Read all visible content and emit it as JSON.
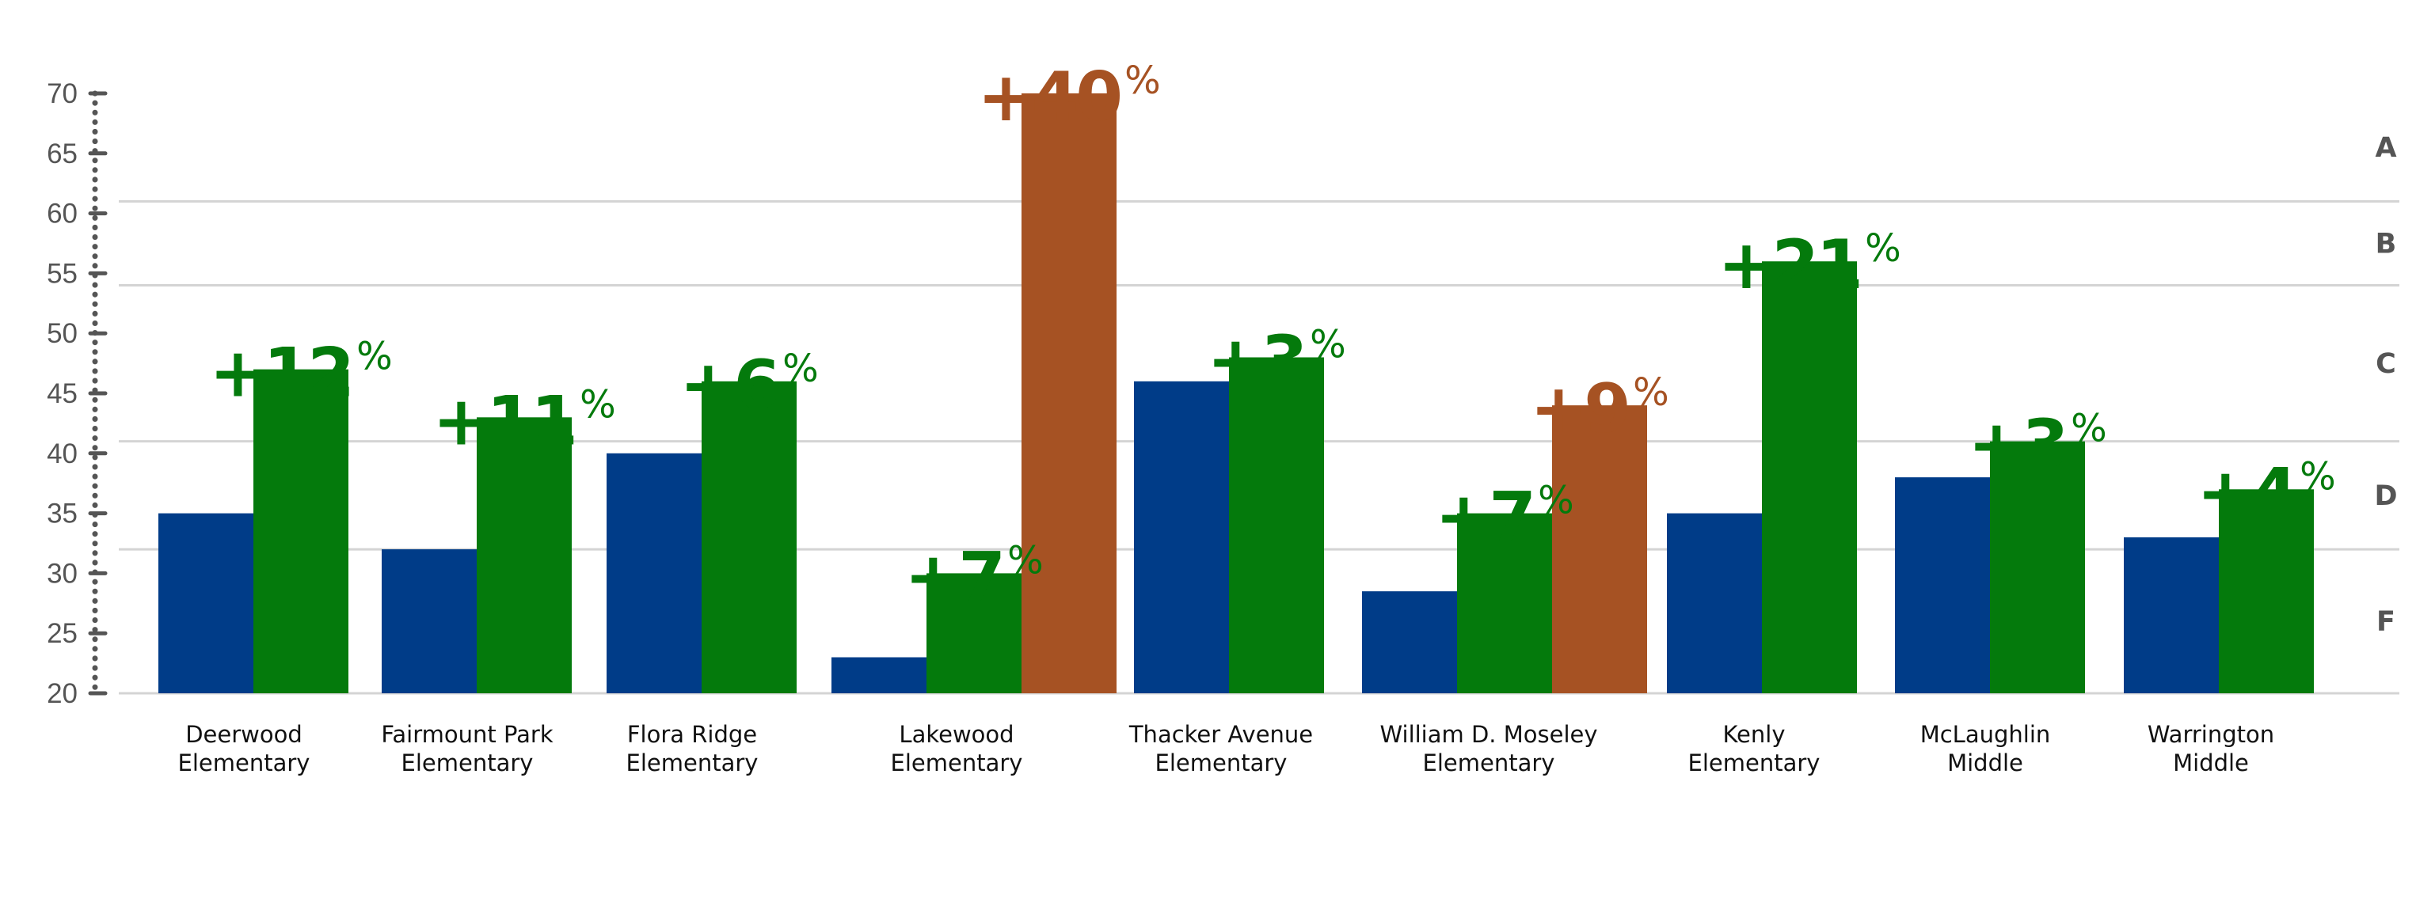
{
  "colors": {
    "baseline_bar": "#003c88",
    "improved_bar": "#047a0c",
    "highlight_bar": "#a65223",
    "grid": "#d4d4d4",
    "axis": "#555555",
    "category_text": "#111111"
  },
  "chart_data": {
    "type": "bar",
    "title": "",
    "xlabel": "",
    "ylabel": "",
    "ylim": [
      20,
      70
    ],
    "y_ticks": [
      "70",
      "65",
      "60",
      "55",
      "50",
      "45",
      "40",
      "35",
      "30",
      "25",
      "20"
    ],
    "grade_bands": [
      {
        "label": "A",
        "lower": 61,
        "upper": 70
      },
      {
        "label": "B",
        "lower": 54,
        "upper": 61
      },
      {
        "label": "C",
        "lower": 41,
        "upper": 54
      },
      {
        "label": "D",
        "lower": 32,
        "upper": 41
      },
      {
        "label": "F",
        "lower": 20,
        "upper": 32
      }
    ],
    "categories": [
      {
        "line1": "Deerwood",
        "line2": "Elementary"
      },
      {
        "line1": "Fairmount Park",
        "line2": "Elementary"
      },
      {
        "line1": "Flora Ridge",
        "line2": "Elementary"
      },
      {
        "line1": "Lakewood",
        "line2": "Elementary"
      },
      {
        "line1": "Thacker Avenue",
        "line2": "Elementary"
      },
      {
        "line1": "William D. Moseley",
        "line2": "Elementary"
      },
      {
        "line1": "Kenly",
        "line2": "Elementary"
      },
      {
        "line1": "McLaughlin",
        "line2": "Middle"
      },
      {
        "line1": "Warrington",
        "line2": "Middle"
      }
    ],
    "groups": [
      {
        "bars": [
          {
            "value": 35,
            "kind": "baseline"
          },
          {
            "value": 47,
            "kind": "improved",
            "label": "+12",
            "label_color": "improved"
          }
        ]
      },
      {
        "bars": [
          {
            "value": 32,
            "kind": "baseline"
          },
          {
            "value": 43,
            "kind": "improved",
            "label": "+11",
            "label_color": "improved"
          }
        ]
      },
      {
        "bars": [
          {
            "value": 40,
            "kind": "baseline"
          },
          {
            "value": 46,
            "kind": "improved",
            "label": "+6",
            "label_color": "improved"
          }
        ]
      },
      {
        "bars": [
          {
            "value": 23,
            "kind": "baseline"
          },
          {
            "value": 30,
            "kind": "improved",
            "label": "+7",
            "label_color": "improved"
          },
          {
            "value": 70,
            "kind": "highlight",
            "label": "+40",
            "label_color": "highlight"
          }
        ]
      },
      {
        "bars": [
          {
            "value": 46,
            "kind": "baseline"
          },
          {
            "value": 48,
            "kind": "improved",
            "label": "+3",
            "label_color": "improved"
          }
        ]
      },
      {
        "bars": [
          {
            "value": 28.5,
            "kind": "baseline"
          },
          {
            "value": 35,
            "kind": "improved",
            "label": "+7",
            "label_color": "improved"
          },
          {
            "value": 44,
            "kind": "highlight",
            "label": "+9",
            "label_color": "highlight"
          }
        ]
      },
      {
        "bars": [
          {
            "value": 35,
            "kind": "baseline"
          },
          {
            "value": 56,
            "kind": "improved",
            "label": "+21",
            "label_color": "improved"
          }
        ]
      },
      {
        "bars": [
          {
            "value": 38,
            "kind": "baseline"
          },
          {
            "value": 41,
            "kind": "improved",
            "label": "+3",
            "label_color": "improved"
          }
        ]
      },
      {
        "bars": [
          {
            "value": 33,
            "kind": "baseline"
          },
          {
            "value": 37,
            "kind": "improved",
            "label": "+4",
            "label_color": "improved"
          }
        ]
      }
    ],
    "percent_symbol": "%",
    "grid": true,
    "legend": "none"
  }
}
